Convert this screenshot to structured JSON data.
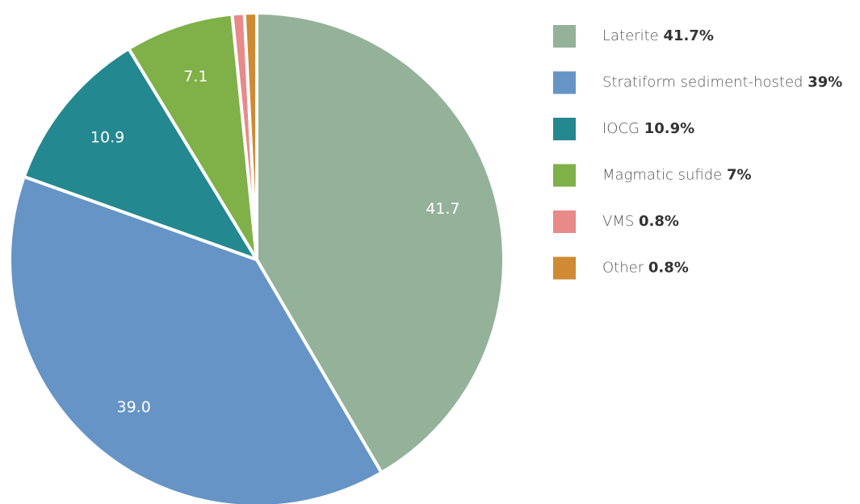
{
  "chart_data": {
    "type": "pie",
    "categories": [
      "Laterite",
      "Stratiform sediment-hosted",
      "IOCG",
      "Magmatic sufide",
      "VMS",
      "Other"
    ],
    "values": [
      41.7,
      39.0,
      10.9,
      7.1,
      0.8,
      0.8
    ],
    "value_labels": [
      "41.7",
      "39.0",
      "10.9",
      "7.1",
      null,
      null
    ],
    "legend_labels": [
      "41.7%",
      "39%",
      "10.9%",
      "7%",
      "0.8%",
      "0.8%"
    ],
    "colors": [
      "#94b199",
      "#6694c6",
      "#248890",
      "#80b048",
      "#e88a8a",
      "#cf8a33"
    ],
    "legend": "right"
  }
}
